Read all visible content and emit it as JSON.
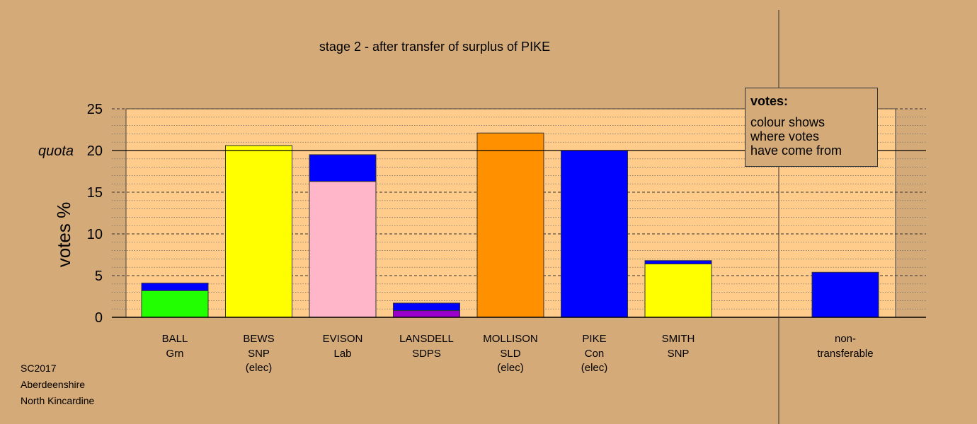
{
  "chart_data": {
    "type": "bar",
    "stacked": true,
    "title": "stage 2 - after transfer of surplus of PIKE",
    "ylabel": "votes %",
    "ylim": [
      0,
      25
    ],
    "yticks": [
      0,
      5,
      10,
      15,
      20,
      25
    ],
    "quota": {
      "value": 20,
      "label": "quota"
    },
    "candidates": [
      {
        "name": "BALL",
        "party": "Grn",
        "status": "",
        "segments": [
          {
            "value": 3.2,
            "color": "#22ff00"
          },
          {
            "value": 0.9,
            "color": "#0000ff"
          }
        ]
      },
      {
        "name": "BEWS",
        "party": "SNP",
        "status": "(elec)",
        "segments": [
          {
            "value": 20.6,
            "color": "#ffff00"
          }
        ]
      },
      {
        "name": "EVISON",
        "party": "Lab",
        "status": "",
        "segments": [
          {
            "value": 16.3,
            "color": "#ffb6c8"
          },
          {
            "value": 3.2,
            "color": "#0000ff"
          }
        ]
      },
      {
        "name": "LANSDELL",
        "party": "SDPS",
        "status": "",
        "segments": [
          {
            "value": 0.8,
            "color": "#9900cc"
          },
          {
            "value": 0.9,
            "color": "#0000ff"
          }
        ]
      },
      {
        "name": "MOLLISON",
        "party": "SLD",
        "status": "(elec)",
        "segments": [
          {
            "value": 22.1,
            "color": "#ff9100"
          }
        ]
      },
      {
        "name": "PIKE",
        "party": "Con",
        "status": "(elec)",
        "segments": [
          {
            "value": 20.0,
            "color": "#0000ff"
          }
        ]
      },
      {
        "name": "SMITH",
        "party": "SNP",
        "status": "",
        "segments": [
          {
            "value": 6.4,
            "color": "#ffff00"
          },
          {
            "value": 0.4,
            "color": "#0000ff"
          }
        ]
      }
    ],
    "nontransferable": {
      "label1": "non-",
      "label2": "transferable",
      "value": 5.4,
      "color": "#0000ff"
    },
    "legend": {
      "title": "votes:",
      "lines": [
        "colour shows",
        "where votes",
        "have come from"
      ],
      "placement": "top-right"
    }
  },
  "footer": {
    "line1": "SC2017",
    "line2": "Aberdeenshire",
    "line3": "North Kincardine"
  }
}
